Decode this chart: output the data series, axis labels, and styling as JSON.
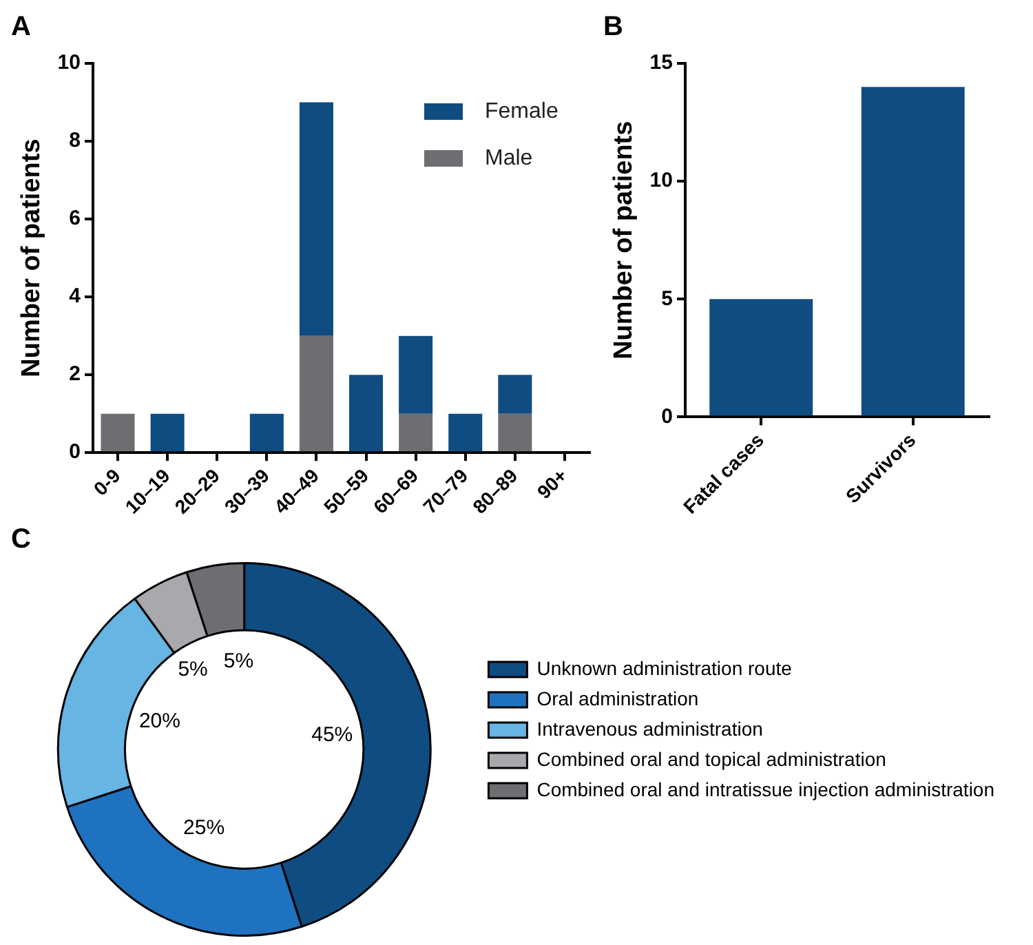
{
  "chart_data": [
    {
      "type": "bar",
      "title": "A",
      "categories": [
        "0-9",
        "10–19",
        "20–29",
        "30–39",
        "40–49",
        "50–59",
        "60–69",
        "70–79",
        "80–89",
        "90+"
      ],
      "stacked": true,
      "ylabel": "Number of patients",
      "ylim": [
        0,
        10
      ],
      "yticks": [
        0,
        2,
        4,
        6,
        8,
        10
      ],
      "grid": false,
      "legend": "top right",
      "series": [
        {
          "name": "Male",
          "color": "#6d6e71",
          "values": [
            1,
            0,
            0,
            0,
            3,
            0,
            1,
            0,
            1,
            0
          ]
        },
        {
          "name": "Female",
          "color": "#0f4c81",
          "values": [
            0,
            1,
            0,
            1,
            6,
            2,
            2,
            1,
            1,
            0
          ]
        }
      ]
    },
    {
      "type": "bar",
      "title": "B",
      "categories": [
        "Fatal cases",
        "Survivors"
      ],
      "values": [
        5,
        14
      ],
      "color": "#0f4c81",
      "ylabel": "Number of patients",
      "ylim": [
        0,
        15
      ],
      "yticks": [
        0,
        5,
        10,
        15
      ],
      "grid": false
    },
    {
      "type": "donut",
      "title": "C",
      "categories": [
        "Unknown administration route",
        "Oral administration",
        "Intravenous administration",
        "Combined oral and topical administration",
        "Combined oral and intratissue injection administration"
      ],
      "values": [
        45,
        25,
        20,
        5,
        5
      ],
      "colors": [
        "#0f4c81",
        "#1f72bf",
        "#66b5e3",
        "#a7a9ac",
        "#6d6e71"
      ],
      "value_labels": [
        "45%",
        "25%",
        "20%",
        "5%",
        "5%"
      ],
      "legend": "right"
    }
  ]
}
